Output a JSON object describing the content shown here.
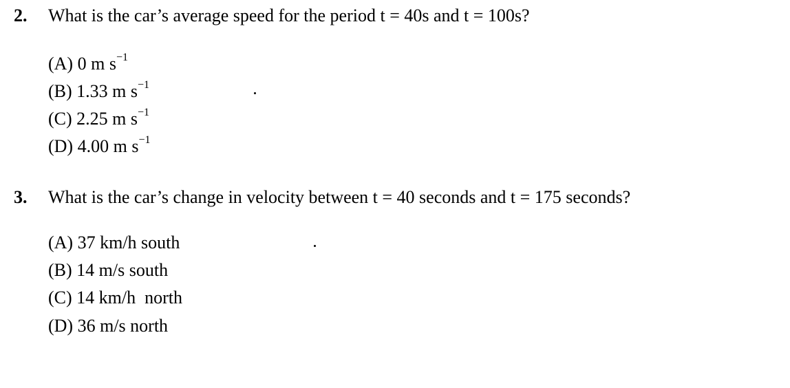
{
  "questions": [
    {
      "number": "2.",
      "text": "What is the car’s average speed for the period t = 40s and t = 100s?",
      "options": [
        {
          "label": "(A)",
          "value": "0 m s",
          "sup": "−1"
        },
        {
          "label": "(B)",
          "value": "1.33 m s",
          "sup": "−1"
        },
        {
          "label": "(C)",
          "value": "2.25 m s",
          "sup": "−1"
        },
        {
          "label": "(D)",
          "value": "4.00 m s",
          "sup": "−1"
        }
      ]
    },
    {
      "number": "3.",
      "text": "What is the car’s change in velocity between t = 40 seconds and t = 175 seconds?",
      "options": [
        {
          "label": "(A)",
          "value": "37 km/h south"
        },
        {
          "label": "(B)",
          "value": "14 m/s south"
        },
        {
          "label": "(C)",
          "value": "14 km/h  north"
        },
        {
          "label": "(D)",
          "value": "36 m/s north"
        }
      ]
    }
  ]
}
